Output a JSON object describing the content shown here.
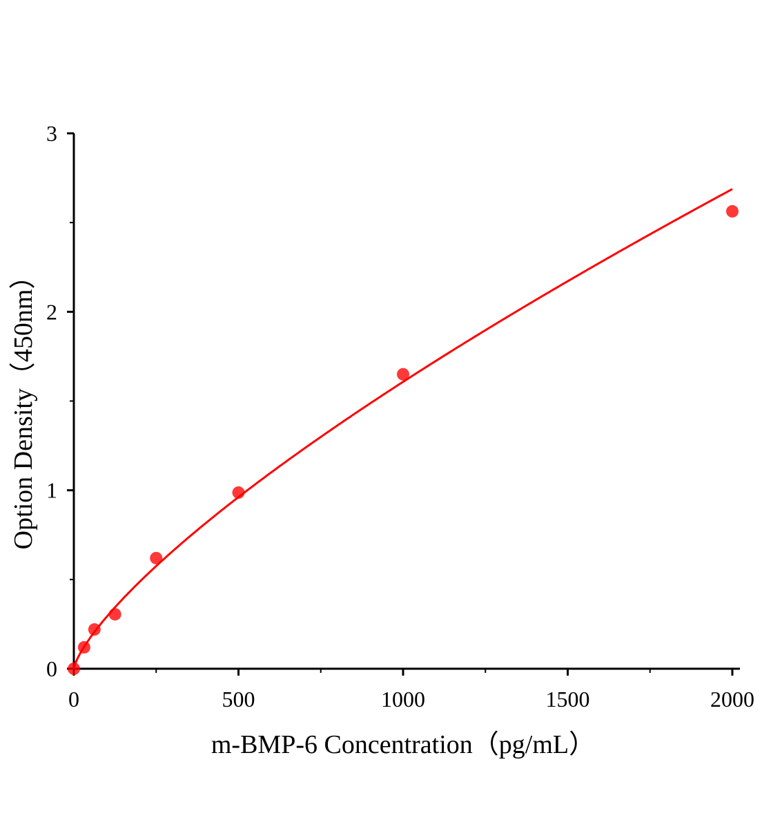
{
  "chart_data": {
    "type": "scatter",
    "title": "",
    "xlabel": "m-BMP-6 Concentration（pg/mL）",
    "ylabel": "Option Density（450nm）",
    "xlim": [
      0,
      2000
    ],
    "ylim": [
      0,
      3
    ],
    "x_ticks": [
      "0",
      "500",
      "1000",
      "1500",
      "2000"
    ],
    "y_ticks": [
      "0",
      "1",
      "2",
      "3"
    ],
    "grid": false,
    "legend": "none",
    "color": "#ff0000",
    "series": [
      {
        "x": [
          0,
          31.25,
          62.5,
          125,
          250,
          500,
          1000,
          2000
        ],
        "y": [
          0,
          0.12,
          0.22,
          0.305,
          0.62,
          0.987,
          1.65,
          2.563
        ],
        "fit_curve": true
      }
    ]
  }
}
